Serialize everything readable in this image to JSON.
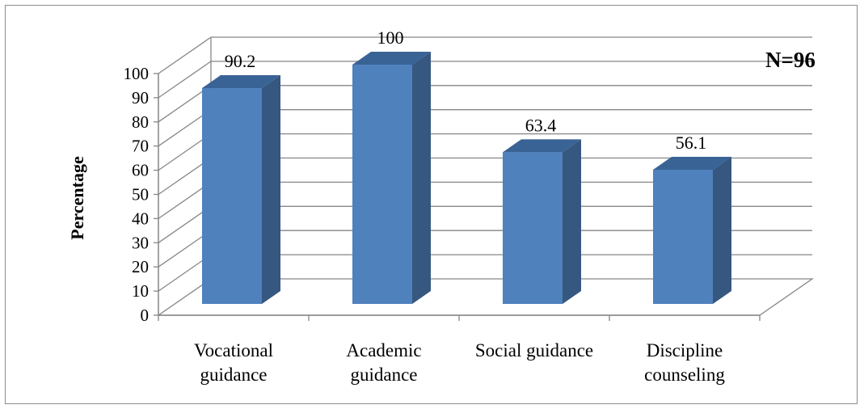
{
  "chart_data": {
    "type": "bar",
    "style": "3d-column",
    "categories": [
      [
        "Vocational",
        "guidance"
      ],
      [
        "Academic",
        "guidance"
      ],
      [
        "Social guidance"
      ],
      [
        "Discipline",
        "counseling"
      ]
    ],
    "values": [
      90.2,
      100,
      63.4,
      56.1
    ],
    "data_labels": [
      "90.2",
      "100",
      "63.4",
      "56.1"
    ],
    "ylabel": "Percentage",
    "ylim": [
      0,
      100
    ],
    "yticks": [
      0,
      10,
      20,
      30,
      40,
      50,
      60,
      70,
      80,
      90,
      100
    ],
    "annotation": "N=96",
    "grid": true,
    "legend": "none",
    "colors": {
      "bar_front": "#4f81bd",
      "bar_side": "#36577f",
      "bar_top": "#3a6395",
      "grid": "#868686"
    }
  }
}
